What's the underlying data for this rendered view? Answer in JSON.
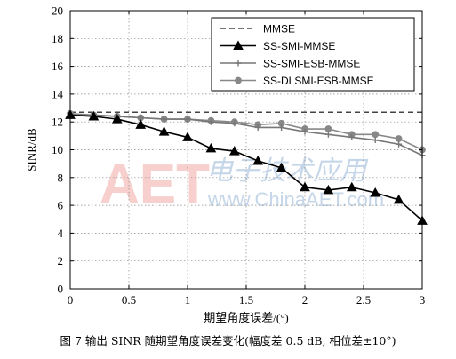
{
  "chart_data": {
    "type": "line",
    "title": "",
    "xlabel": "期望角度误差/(°)",
    "ylabel": "SINR/dB",
    "xlim": [
      0,
      3
    ],
    "ylim": [
      0,
      20
    ],
    "xticks": [
      "0",
      "0.5",
      "1",
      "1.5",
      "2",
      "2.5",
      "3"
    ],
    "yticks": [
      "0",
      "2",
      "4",
      "6",
      "8",
      "10",
      "12",
      "14",
      "16",
      "18",
      "20"
    ],
    "grid": true,
    "legend_position": "top-right",
    "x": [
      0,
      0.2,
      0.4,
      0.6,
      0.8,
      1.0,
      1.2,
      1.4,
      1.6,
      1.8,
      2.0,
      2.2,
      2.4,
      2.6,
      2.8,
      3.0
    ],
    "series": [
      {
        "name": "MMSE",
        "style": "dashed",
        "marker": "none",
        "color": "#444444",
        "values": [
          12.7,
          12.7,
          12.7,
          12.7,
          12.7,
          12.7,
          12.7,
          12.7,
          12.7,
          12.7,
          12.7,
          12.7,
          12.7,
          12.7,
          12.7,
          12.7
        ]
      },
      {
        "name": "SS-SMI-MMSE",
        "style": "solid",
        "marker": "triangle",
        "color": "#000000",
        "values": [
          12.5,
          12.4,
          12.2,
          11.8,
          11.3,
          10.9,
          10.1,
          9.9,
          9.2,
          8.7,
          7.3,
          7.1,
          7.3,
          6.9,
          6.4,
          4.9
        ]
      },
      {
        "name": "SS-SMI-ESB-MMSE",
        "style": "solid",
        "marker": "plus",
        "color": "#777777",
        "values": [
          12.5,
          12.5,
          12.4,
          12.3,
          12.2,
          12.2,
          12.0,
          11.9,
          11.6,
          11.6,
          11.3,
          11.1,
          10.9,
          10.7,
          10.4,
          9.6
        ]
      },
      {
        "name": "SS-DLSMI-ESB-MMSE",
        "style": "solid",
        "marker": "circle",
        "color": "#888888",
        "values": [
          12.6,
          12.5,
          12.4,
          12.3,
          12.2,
          12.2,
          12.1,
          12.0,
          11.8,
          11.9,
          11.5,
          11.5,
          11.1,
          11.1,
          10.8,
          10.0
        ]
      }
    ]
  },
  "watermark": {
    "logo_text": "AET",
    "cn_text": "电子技术应用",
    "url_text": "www.ChinaAET.com"
  },
  "caption": "图 7  输出 SINR 随期望角度误差变化(幅度差 0.5 dB, 相位差±10°)"
}
